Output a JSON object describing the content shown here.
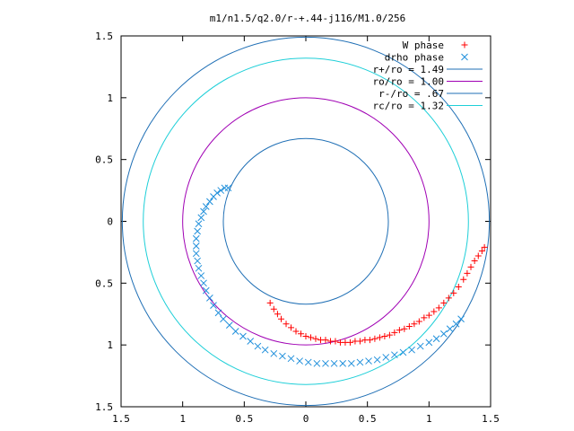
{
  "chart_data": {
    "type": "scatter",
    "title": "m1/n1.5/q2.0/r-+.44-j116/M1.0/256",
    "xlim": [
      -1.5,
      1.5
    ],
    "ylim": [
      -1.5,
      1.5
    ],
    "x_tick_labels": [
      {
        "value": -1.5,
        "label": "1.5"
      },
      {
        "value": -1.0,
        "label": "1"
      },
      {
        "value": -0.5,
        "label": "0.5"
      },
      {
        "value": 0.0,
        "label": "0"
      },
      {
        "value": 0.5,
        "label": "0.5"
      },
      {
        "value": 1.0,
        "label": "1"
      },
      {
        "value": 1.5,
        "label": "1.5"
      }
    ],
    "y_tick_labels": [
      {
        "value": 1.5,
        "label": "1.5"
      },
      {
        "value": 1.0,
        "label": "1"
      },
      {
        "value": 0.5,
        "label": "0.5"
      },
      {
        "value": 0.0,
        "label": "0"
      },
      {
        "value": -0.5,
        "label": "0.5"
      },
      {
        "value": -1.0,
        "label": "1"
      },
      {
        "value": -1.5,
        "label": "1.5"
      }
    ],
    "legend_position": "top-right",
    "circles": [
      {
        "name": "r+/ro = 1.49",
        "radius": 1.49,
        "color": "#1f6fb5"
      },
      {
        "name": "ro/ro = 1.00",
        "radius": 1.0,
        "color": "#a000b4"
      },
      {
        "name": "r-/ro = .67",
        "radius": 0.67,
        "color": "#1f6fb5"
      },
      {
        "name": "rc/ro = 1.32",
        "radius": 1.32,
        "color": "#1ecfd8"
      }
    ],
    "series": [
      {
        "name": "W phase",
        "marker": "+",
        "color": "#ff0000",
        "points": [
          [
            -0.29,
            -0.66
          ],
          [
            -0.26,
            -0.71
          ],
          [
            -0.23,
            -0.75
          ],
          [
            -0.2,
            -0.79
          ],
          [
            -0.16,
            -0.83
          ],
          [
            -0.12,
            -0.86
          ],
          [
            -0.08,
            -0.89
          ],
          [
            -0.04,
            -0.91
          ],
          [
            0.0,
            -0.93
          ],
          [
            0.04,
            -0.94
          ],
          [
            0.08,
            -0.95
          ],
          [
            0.12,
            -0.96
          ],
          [
            0.16,
            -0.96
          ],
          [
            0.2,
            -0.97
          ],
          [
            0.24,
            -0.97
          ],
          [
            0.28,
            -0.98
          ],
          [
            0.32,
            -0.98
          ],
          [
            0.36,
            -0.98
          ],
          [
            0.4,
            -0.97
          ],
          [
            0.44,
            -0.97
          ],
          [
            0.48,
            -0.96
          ],
          [
            0.52,
            -0.96
          ],
          [
            0.56,
            -0.95
          ],
          [
            0.6,
            -0.94
          ],
          [
            0.64,
            -0.93
          ],
          [
            0.68,
            -0.92
          ],
          [
            0.72,
            -0.9
          ],
          [
            0.76,
            -0.88
          ],
          [
            0.8,
            -0.87
          ],
          [
            0.84,
            -0.85
          ],
          [
            0.88,
            -0.83
          ],
          [
            0.92,
            -0.81
          ],
          [
            0.96,
            -0.78
          ],
          [
            1.0,
            -0.76
          ],
          [
            1.04,
            -0.73
          ],
          [
            1.08,
            -0.7
          ],
          [
            1.12,
            -0.66
          ],
          [
            1.16,
            -0.62
          ],
          [
            1.2,
            -0.58
          ],
          [
            1.24,
            -0.53
          ],
          [
            1.28,
            -0.47
          ],
          [
            1.31,
            -0.42
          ],
          [
            1.34,
            -0.37
          ],
          [
            1.37,
            -0.32
          ],
          [
            1.4,
            -0.28
          ],
          [
            1.43,
            -0.24
          ],
          [
            1.45,
            -0.21
          ]
        ]
      },
      {
        "name": "drho phase",
        "marker": "x",
        "color": "#1f8fdb",
        "points": [
          [
            -0.63,
            0.27
          ],
          [
            -0.66,
            0.27
          ],
          [
            -0.69,
            0.25
          ],
          [
            -0.72,
            0.23
          ],
          [
            -0.75,
            0.2
          ],
          [
            -0.78,
            0.16
          ],
          [
            -0.81,
            0.12
          ],
          [
            -0.83,
            0.08
          ],
          [
            -0.85,
            0.03
          ],
          [
            -0.87,
            -0.02
          ],
          [
            -0.88,
            -0.08
          ],
          [
            -0.89,
            -0.14
          ],
          [
            -0.89,
            -0.2
          ],
          [
            -0.89,
            -0.26
          ],
          [
            -0.88,
            -0.32
          ],
          [
            -0.87,
            -0.38
          ],
          [
            -0.85,
            -0.44
          ],
          [
            -0.83,
            -0.5
          ],
          [
            -0.81,
            -0.56
          ],
          [
            -0.78,
            -0.62
          ],
          [
            -0.75,
            -0.68
          ],
          [
            -0.71,
            -0.74
          ],
          [
            -0.67,
            -0.79
          ],
          [
            -0.62,
            -0.84
          ],
          [
            -0.57,
            -0.89
          ],
          [
            -0.51,
            -0.93
          ],
          [
            -0.45,
            -0.97
          ],
          [
            -0.39,
            -1.01
          ],
          [
            -0.33,
            -1.04
          ],
          [
            -0.26,
            -1.07
          ],
          [
            -0.19,
            -1.09
          ],
          [
            -0.12,
            -1.11
          ],
          [
            -0.05,
            -1.13
          ],
          [
            0.02,
            -1.14
          ],
          [
            0.09,
            -1.15
          ],
          [
            0.16,
            -1.15
          ],
          [
            0.23,
            -1.15
          ],
          [
            0.3,
            -1.15
          ],
          [
            0.37,
            -1.15
          ],
          [
            0.44,
            -1.14
          ],
          [
            0.51,
            -1.13
          ],
          [
            0.58,
            -1.12
          ],
          [
            0.65,
            -1.1
          ],
          [
            0.72,
            -1.08
          ],
          [
            0.79,
            -1.06
          ],
          [
            0.86,
            -1.04
          ],
          [
            0.93,
            -1.01
          ],
          [
            1.0,
            -0.98
          ],
          [
            1.06,
            -0.95
          ],
          [
            1.12,
            -0.91
          ],
          [
            1.17,
            -0.87
          ],
          [
            1.22,
            -0.83
          ],
          [
            1.26,
            -0.79
          ]
        ]
      }
    ]
  }
}
